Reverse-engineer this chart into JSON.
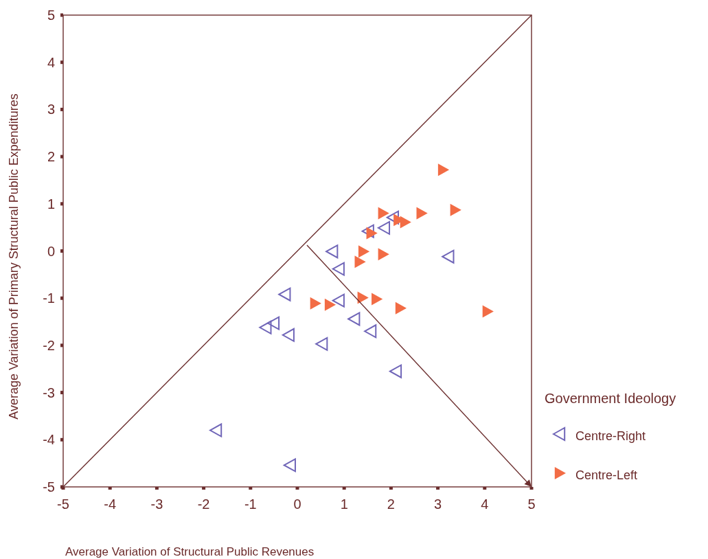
{
  "chart_data": {
    "type": "scatter",
    "xlabel": "Average Variation of Structural Public Revenues",
    "ylabel": "Average Variation of Primary Structural Public Expenditures",
    "legend_title": "Government Ideology",
    "legend": "right",
    "grid": false,
    "xlim": [
      -5,
      5
    ],
    "ylim": [
      -5,
      5
    ],
    "xticks": [
      -5,
      -4,
      -3,
      -2,
      -1,
      0,
      1,
      2,
      3,
      4,
      5
    ],
    "yticks": [
      -5,
      -4,
      -3,
      -2,
      -1,
      0,
      1,
      2,
      3,
      4,
      5
    ],
    "series": [
      {
        "name": "Centre-Right",
        "color": "#7066b8",
        "marker": "triangle",
        "x": [
          -0.26,
          -0.67,
          -0.5,
          -0.18,
          0.53,
          0.89,
          1.22,
          1.57,
          2.11,
          -1.73,
          -0.15,
          0.75,
          0.89,
          1.52,
          1.86,
          2.05,
          3.23
        ],
        "values": [
          -0.92,
          -1.62,
          -1.53,
          -1.78,
          -1.97,
          -1.05,
          -1.44,
          -1.7,
          -2.55,
          -3.8,
          -4.54,
          -0.01,
          -0.38,
          0.42,
          0.49,
          0.71,
          -0.12
        ]
      },
      {
        "name": "Centre-Left",
        "color": "#f26c45",
        "marker": "triangle",
        "x": [
          3.11,
          1.83,
          2.65,
          3.37,
          1.58,
          2.16,
          2.3,
          1.41,
          1.83,
          1.33,
          0.38,
          0.69,
          1.39,
          1.69,
          2.2,
          4.06
        ],
        "values": [
          1.72,
          0.8,
          0.8,
          0.87,
          0.38,
          0.66,
          0.61,
          -0.01,
          -0.07,
          -0.23,
          -1.11,
          -1.14,
          -0.99,
          -1.02,
          -1.21,
          -1.28
        ]
      },
      {
        "type": "line",
        "color": "#6b2e2e",
        "x": [
          -5,
          5
        ],
        "values": [
          -5,
          5
        ]
      }
    ]
  }
}
